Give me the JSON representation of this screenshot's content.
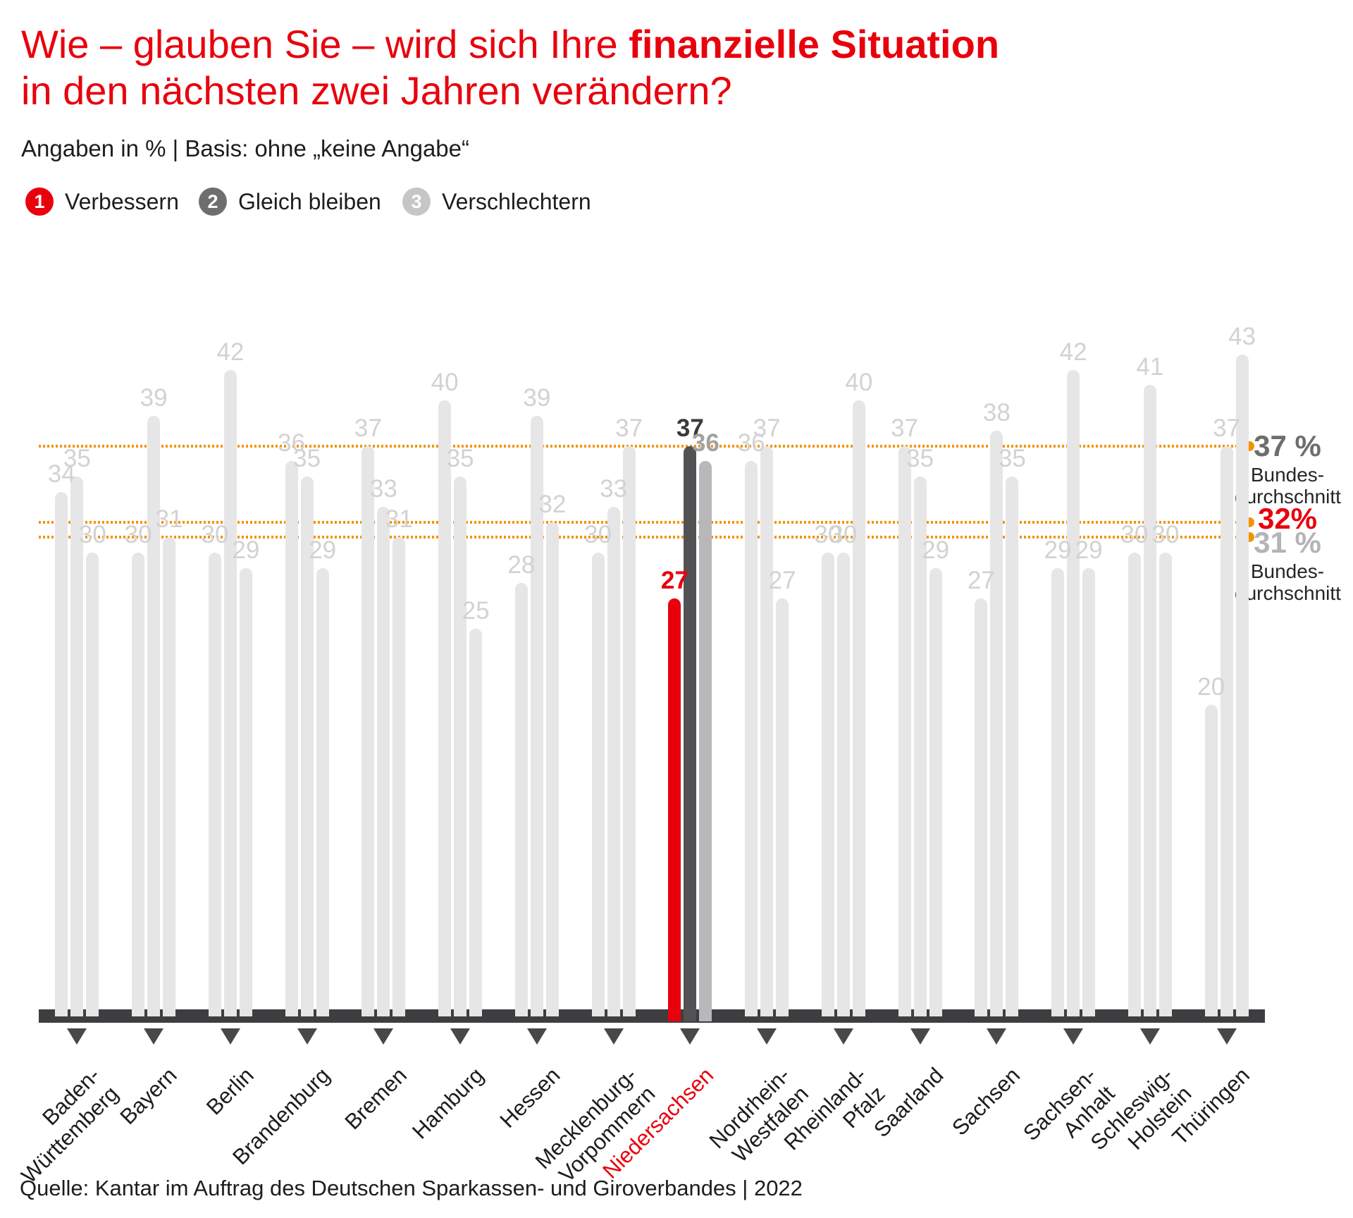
{
  "title": {
    "line1_prefix": "Wie – glauben Sie – wird sich Ihre ",
    "line1_bold": "finanzielle Situation",
    "line2": "in den nächsten zwei Jahren verändern?"
  },
  "subtitle": "Angaben in % | Basis: ohne „keine Angabe“",
  "legend": [
    {
      "num": "1",
      "label": "Verbessern",
      "color": "#e8000d"
    },
    {
      "num": "2",
      "label": "Gleich bleiben",
      "color": "#6e6e70"
    },
    {
      "num": "3",
      "label": "Verschlechtern",
      "color": "#c6c6c8"
    }
  ],
  "source": "Quelle: Kantar im Auftrag des Deutschen Sparkassen- und Giroverbandes | 2022",
  "colors": {
    "red": "#e8000d",
    "orange": "#f29400",
    "light_bar": "#e6e6e6",
    "light_label": "#d2d2d2",
    "highlight_bars": [
      "#e8000d",
      "#525254",
      "#b8b8ba"
    ],
    "highlight_labels": [
      "#e8000d",
      "#3a3a3c",
      "#a2a2a4"
    ],
    "axis": "#3e3e40",
    "avg_text": [
      "#6d6d6f",
      "#e8000d",
      "#b4b4b6"
    ]
  },
  "chart_data": {
    "type": "bar",
    "title": "Wie – glauben Sie – wird sich Ihre finanzielle Situation in den nächsten zwei Jahren verändern?",
    "unit": "%",
    "ylim": [
      0,
      50
    ],
    "grid": "three dotted horizontal average lines, legend top-left, value labels above bars",
    "categories": [
      "Baden-Württemberg",
      "Bayern",
      "Berlin",
      "Brandenburg",
      "Bremen",
      "Hamburg",
      "Hessen",
      "Mecklenburg-Vorpommern",
      "Niedersachsen",
      "Nordrhein-Westfalen",
      "Rheinland-Pfalz",
      "Saarland",
      "Sachsen",
      "Sachsen-Anhalt",
      "Schleswig-Holstein",
      "Thüringen"
    ],
    "category_label_lines": [
      [
        "Baden-",
        "Württemberg"
      ],
      [
        "Bayern"
      ],
      [
        "Berlin"
      ],
      [
        "Brandenburg"
      ],
      [
        "Bremen"
      ],
      [
        "Hamburg"
      ],
      [
        "Hessen"
      ],
      [
        "Mecklenburg-",
        "Vorpommern"
      ],
      [
        "Niedersachsen"
      ],
      [
        "Nordrhein-",
        "Westfalen"
      ],
      [
        "Rheinland-Pfalz"
      ],
      [
        "Saarland"
      ],
      [
        "Sachsen"
      ],
      [
        "Sachsen-Anhalt"
      ],
      [
        "Schleswig-",
        "Holstein"
      ],
      [
        "Thüringen"
      ]
    ],
    "series": [
      {
        "name": "Verbessern",
        "values": [
          34,
          30,
          30,
          36,
          37,
          40,
          28,
          30,
          27,
          36,
          30,
          37,
          27,
          29,
          30,
          20
        ]
      },
      {
        "name": "Gleich bleiben",
        "values": [
          35,
          39,
          42,
          35,
          33,
          35,
          39,
          33,
          37,
          37,
          30,
          35,
          38,
          42,
          41,
          37
        ]
      },
      {
        "name": "Verschlechtern",
        "values": [
          30,
          31,
          29,
          29,
          31,
          25,
          32,
          37,
          36,
          27,
          40,
          29,
          35,
          29,
          30,
          43
        ]
      }
    ],
    "highlight_category": "Niedersachsen",
    "averages": [
      {
        "value": 37,
        "text": "37 %",
        "sub": "Bundes-\ndurchschnitt",
        "series": "Gleich bleiben"
      },
      {
        "value": 32,
        "text": "32%",
        "sub": "",
        "series": "Verbessern"
      },
      {
        "value": 31,
        "text": "31 %",
        "sub": "Bundes-\ndurchschnitt",
        "series": "Verschlechtern"
      }
    ]
  }
}
